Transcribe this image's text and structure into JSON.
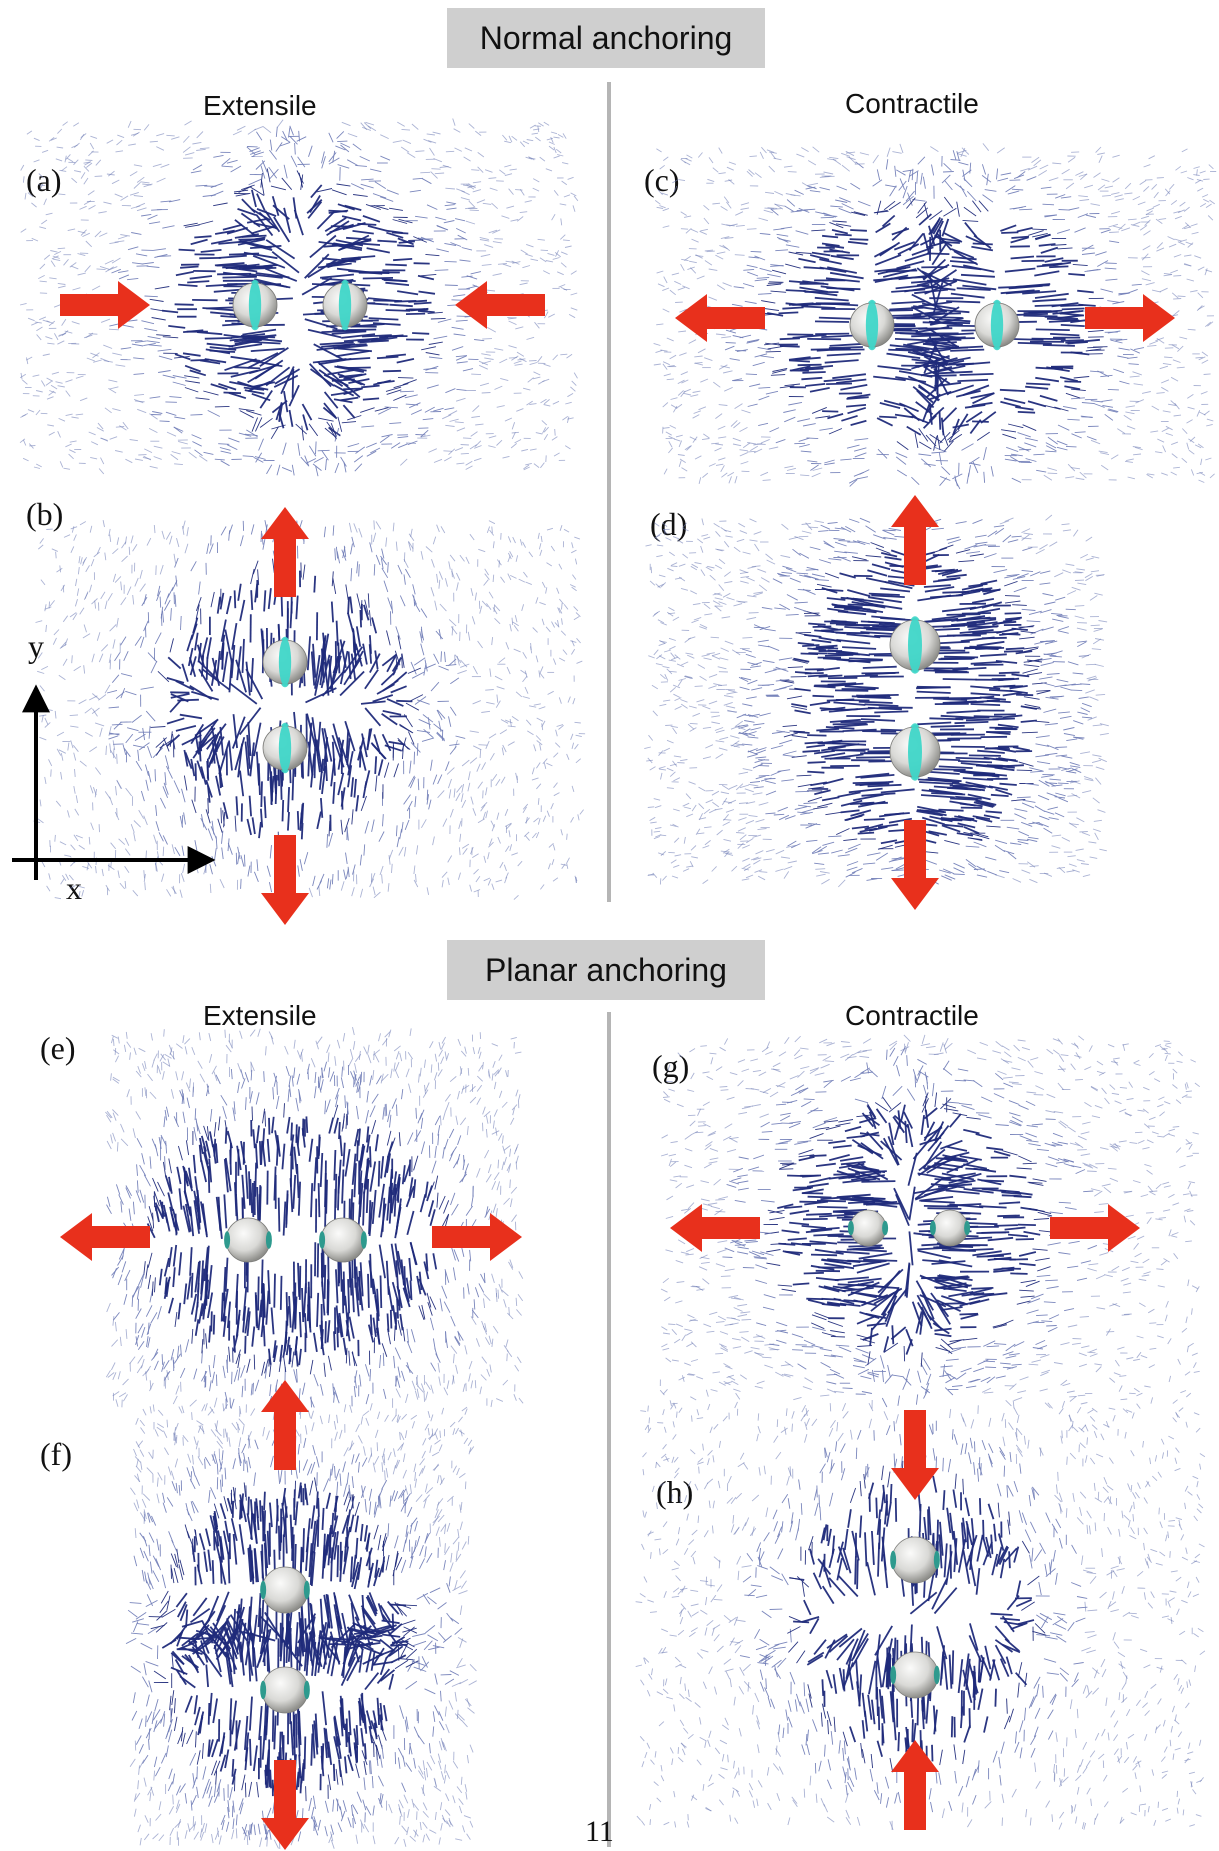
{
  "sections": {
    "normal": {
      "title": "Normal anchoring",
      "extensile_label": "Extensile",
      "contractile_label": "Contractile"
    },
    "planar": {
      "title": "Planar anchoring",
      "extensile_label": "Extensile",
      "contractile_label": "Contractile"
    }
  },
  "panels": {
    "a": "(a)",
    "b": "(b)",
    "c": "(c)",
    "d": "(d)",
    "e": "(e)",
    "f": "(f)",
    "g": "(g)",
    "h": "(h)"
  },
  "axes": {
    "x": "x",
    "y": "y"
  },
  "page_number": "11",
  "colors": {
    "arrow": "#e8301c",
    "field": "#1f2a7a",
    "sphere": "#d9d9d6",
    "ring": "#3fd6c8",
    "banner": "#cfcfcf",
    "divider": "#b5b5b5"
  }
}
